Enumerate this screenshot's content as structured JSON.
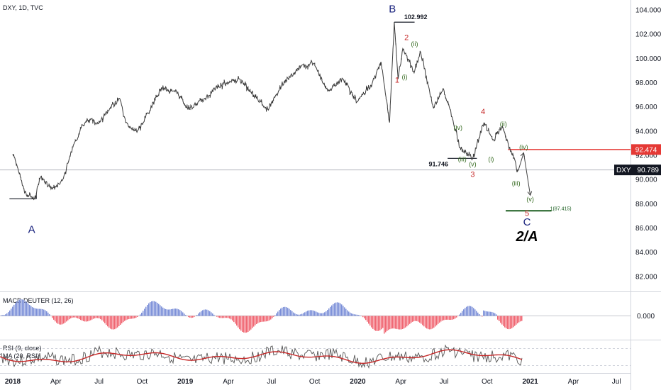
{
  "chart_data": {
    "type": "line",
    "title": "DXY, 1D, TVC",
    "last_price": "90.789",
    "last_price_label": "DXY",
    "resistance_level": "92.474",
    "colors": {
      "price": "#3a3a3a",
      "resistance": "#e53935",
      "target": "#1b5e20",
      "wave_major": "#1a237e",
      "wave_minor": "#c62828",
      "wave_sub": "#33691e",
      "macd_pos": "#7b8fd8",
      "macd_neg": "#f06470",
      "rsi_line": "#555555",
      "rsi_ma": "#c62828"
    },
    "y_axis": {
      "range": [
        81.0,
        105.0
      ],
      "ticks": [
        "104.000",
        "102.000",
        "100.000",
        "98.000",
        "96.000",
        "94.000",
        "92.000",
        "90.000",
        "88.000",
        "86.000",
        "84.000",
        "82.000"
      ]
    },
    "x_axis": {
      "labels": [
        "2018",
        "Apr",
        "Jul",
        "Oct",
        "2019",
        "Apr",
        "Jul",
        "Oct",
        "2020",
        "Apr",
        "Jul",
        "Oct",
        "2021",
        "Apr",
        "Jul"
      ],
      "bold": [
        "2018",
        "2019",
        "2020",
        "2021"
      ]
    },
    "price_series": [
      [
        "2018-01-01",
        92.1
      ],
      [
        "2018-01-12",
        90.9
      ],
      [
        "2018-01-26",
        88.9
      ],
      [
        "2018-02-16",
        88.4
      ],
      [
        "2018-03-01",
        90.2
      ],
      [
        "2018-03-23",
        89.2
      ],
      [
        "2018-04-10",
        89.6
      ],
      [
        "2018-04-20",
        90.4
      ],
      [
        "2018-05-01",
        91.8
      ],
      [
        "2018-05-15",
        93.2
      ],
      [
        "2018-05-29",
        94.5
      ],
      [
        "2018-06-15",
        95.0
      ],
      [
        "2018-07-01",
        94.6
      ],
      [
        "2018-07-15",
        95.3
      ],
      [
        "2018-08-15",
        96.7
      ],
      [
        "2018-08-28",
        94.7
      ],
      [
        "2018-09-21",
        93.9
      ],
      [
        "2018-10-15",
        95.5
      ],
      [
        "2018-11-12",
        97.6
      ],
      [
        "2018-12-15",
        97.1
      ],
      [
        "2019-01-10",
        95.8
      ],
      [
        "2019-02-15",
        96.8
      ],
      [
        "2019-03-07",
        97.6
      ],
      [
        "2019-04-25",
        98.3
      ],
      [
        "2019-06-25",
        95.8
      ],
      [
        "2019-07-30",
        98.1
      ],
      [
        "2019-09-03",
        99.3
      ],
      [
        "2019-10-01",
        99.6
      ],
      [
        "2019-10-30",
        97.3
      ],
      [
        "2019-12-01",
        98.3
      ],
      [
        "2019-12-31",
        96.4
      ],
      [
        "2020-02-01",
        97.9
      ],
      [
        "2020-02-20",
        99.7
      ],
      [
        "2020-03-09",
        94.7
      ],
      [
        "2020-03-19",
        102.992
      ],
      [
        "2020-03-27",
        98.3
      ],
      [
        "2020-04-06",
        100.8
      ],
      [
        "2020-04-30",
        98.8
      ],
      [
        "2020-05-14",
        100.5
      ],
      [
        "2020-06-10",
        95.9
      ],
      [
        "2020-06-30",
        97.5
      ],
      [
        "2020-07-15",
        95.8
      ],
      [
        "2020-08-05",
        92.6
      ],
      [
        "2020-08-18",
        92.2
      ],
      [
        "2020-09-01",
        91.746
      ],
      [
        "2020-09-25",
        94.7
      ],
      [
        "2020-10-15",
        93.3
      ],
      [
        "2020-11-04",
        94.3
      ],
      [
        "2020-11-20",
        92.3
      ],
      [
        "2020-12-01",
        91.4
      ],
      [
        "2020-12-04",
        90.6
      ],
      [
        "2020-12-07",
        90.789
      ]
    ],
    "projection": [
      [
        "2020-12-07",
        90.789
      ],
      [
        "2020-12-18",
        92.2
      ],
      [
        "2021-01-01",
        88.7
      ]
    ],
    "annotations": [
      {
        "text": "102.992",
        "date": "2020-03-19",
        "price": 102.992
      },
      {
        "text": "91.746",
        "date": "2020-09-01",
        "price": 91.746
      },
      {
        "text": "1(87.415)",
        "date": "2021-01-01",
        "price": 87.415
      }
    ],
    "waves": [
      {
        "label": "A",
        "date": "2018-02-10",
        "price": 85.6,
        "kind": "major"
      },
      {
        "label": "B",
        "date": "2020-03-15",
        "price": 103.8,
        "kind": "major"
      },
      {
        "label": "C",
        "date": "2020-12-25",
        "price": 86.2,
        "kind": "major"
      },
      {
        "label": "2/A",
        "date": "2020-12-25",
        "price": 84.9,
        "kind": "big"
      },
      {
        "label": "1",
        "date": "2020-03-25",
        "price": 98.0,
        "kind": "minor"
      },
      {
        "label": "2",
        "date": "2020-04-14",
        "price": 101.5,
        "kind": "minor"
      },
      {
        "label": "3",
        "date": "2020-09-01",
        "price": 90.2,
        "kind": "minor"
      },
      {
        "label": "4",
        "date": "2020-09-23",
        "price": 95.4,
        "kind": "minor"
      },
      {
        "label": "5",
        "date": "2020-12-25",
        "price": 87.0,
        "kind": "minor"
      },
      {
        "label": "(i)",
        "date": "2020-04-10",
        "price": 98.3,
        "kind": "sub"
      },
      {
        "label": "(ii)",
        "date": "2020-05-01",
        "price": 101.0,
        "kind": "sub"
      },
      {
        "label": "(iii)",
        "date": "2020-08-10",
        "price": 91.5,
        "kind": "sub"
      },
      {
        "label": "(iv)",
        "date": "2020-08-01",
        "price": 94.1,
        "kind": "sub"
      },
      {
        "label": "(v)",
        "date": "2020-09-01",
        "price": 91.1,
        "kind": "sub"
      },
      {
        "label": "(i)",
        "date": "2020-10-10",
        "price": 91.5,
        "kind": "sub"
      },
      {
        "label": "(ii)",
        "date": "2020-11-05",
        "price": 94.4,
        "kind": "sub"
      },
      {
        "label": "(iii)",
        "date": "2020-12-02",
        "price": 89.5,
        "kind": "sub"
      },
      {
        "label": "(iv)",
        "date": "2020-12-18",
        "price": 92.5,
        "kind": "sub"
      },
      {
        "label": "(v)",
        "date": "2021-01-01",
        "price": 88.2,
        "kind": "sub"
      }
    ],
    "reference_lines": [
      {
        "name": "A-low",
        "price": 88.4,
        "from": "2017-12-25",
        "to": "2018-02-20"
      },
      {
        "name": "B-high",
        "price": 102.992,
        "from": "2020-03-19",
        "to": "2020-05-01"
      },
      {
        "name": "91.746",
        "price": 91.746,
        "from": "2020-07-10",
        "to": "2020-09-10"
      },
      {
        "name": "target",
        "price": 87.415,
        "from": "2020-11-10",
        "to": "2021-02-15"
      }
    ],
    "macd": {
      "title": "MACD DEUTER (12, 26)",
      "zero_label": "0.000"
    },
    "rsi": {
      "title": "RSI (9, close)",
      "ma_title": "MA (20, RSI)"
    }
  }
}
